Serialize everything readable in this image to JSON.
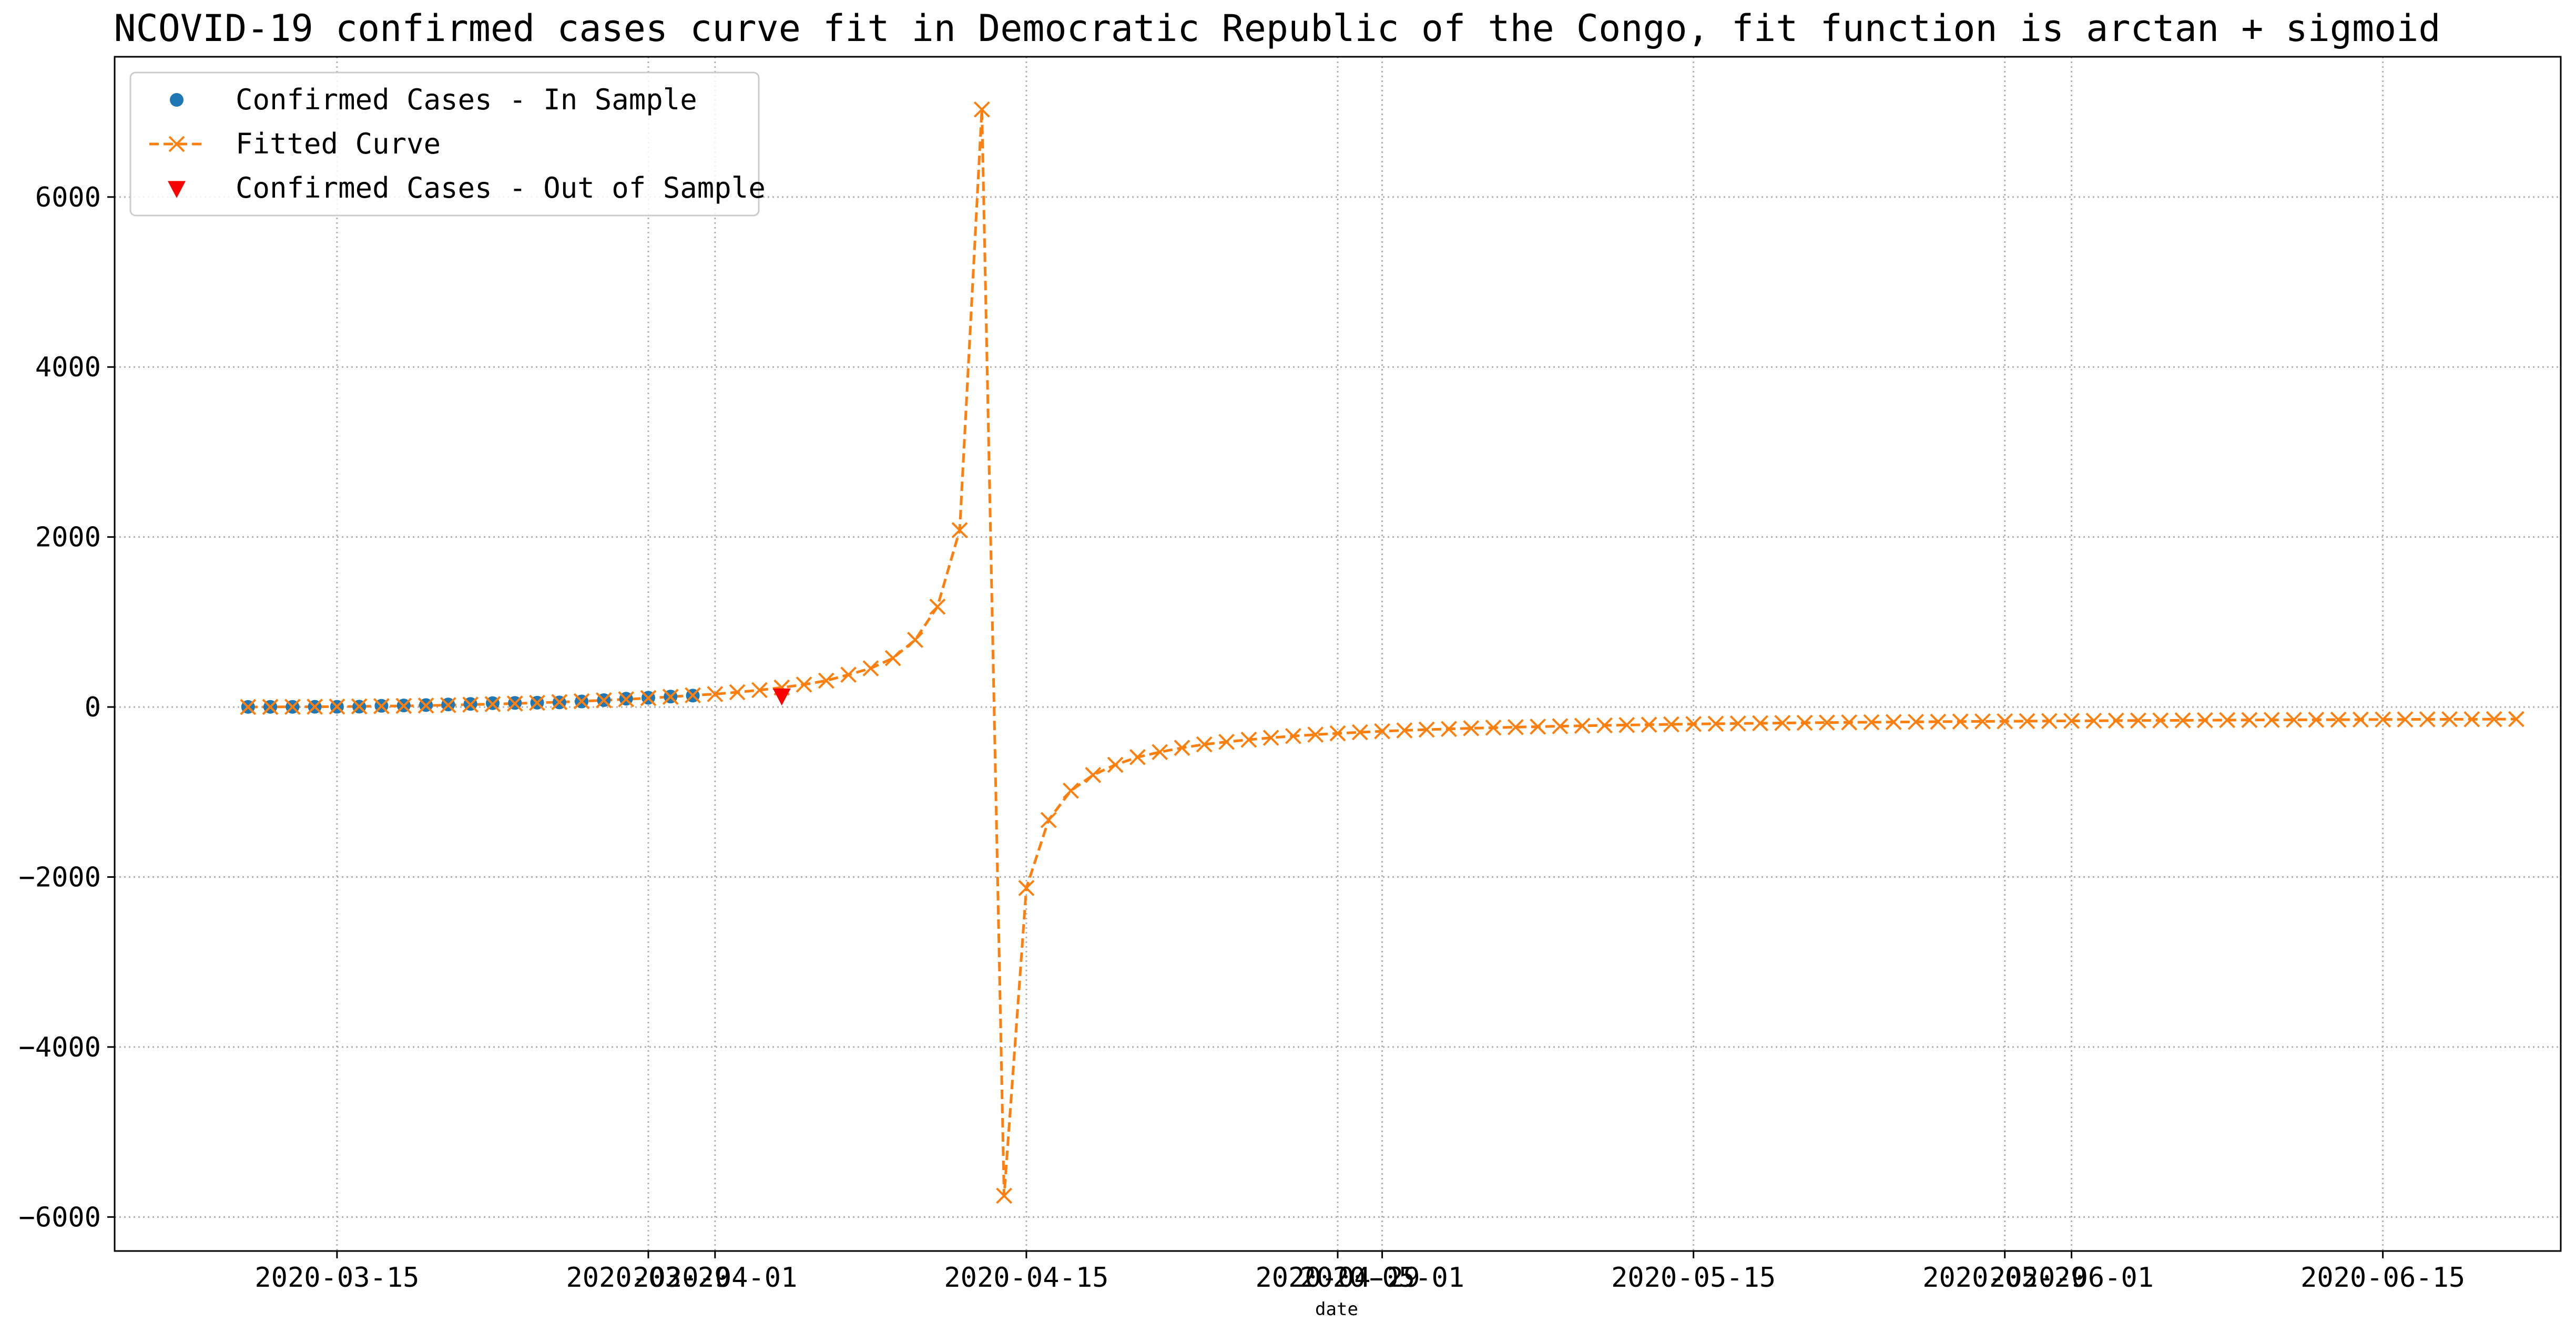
{
  "chart_data": {
    "type": "line",
    "title": "NCOVID-19 confirmed cases curve fit in Democratic Republic of the Congo, fit function is arctan + sigmoid",
    "xlabel": "date",
    "ylabel": "",
    "grid": true,
    "legend_position": "top-left",
    "x_range": [
      "2020-03-05",
      "2020-06-23"
    ],
    "ylim": [
      -6400,
      7650
    ],
    "x_ticks": [
      "2020-03-15",
      "2020-03-29",
      "2020-04-01",
      "2020-04-15",
      "2020-04-29",
      "2020-05-01",
      "2020-05-15",
      "2020-05-29",
      "2020-06-01",
      "2020-06-15"
    ],
    "y_ticks": [
      6000,
      4000,
      2000,
      0,
      -2000,
      -4000,
      -6000
    ],
    "colors": {
      "in_sample": "#1f77b4",
      "fitted": "#ff7f0e",
      "out_of_sample": "#ff0000",
      "grid": "#b0b0b0",
      "axes": "#000000"
    },
    "series": [
      {
        "name": "Confirmed Cases - In Sample",
        "marker": "circle",
        "start_date": "2020-03-11",
        "values": [
          1,
          2,
          2,
          3,
          3,
          4,
          14,
          18,
          23,
          30,
          36,
          45,
          48,
          51,
          54,
          65,
          81,
          98,
          109,
          123,
          134
        ]
      },
      {
        "name": "Fitted Curve",
        "marker": "x",
        "line": "dashed",
        "start_date": "2020-03-11",
        "values": [
          0,
          1,
          2,
          3,
          5,
          7,
          10,
          13,
          17,
          22,
          28,
          34,
          41,
          49,
          58,
          68,
          79,
          91,
          105,
          120,
          138,
          152,
          174,
          199,
          229,
          264,
          310,
          380,
          455,
          575,
          790,
          1180,
          2080,
          7030,
          -5750,
          -2130,
          -1330,
          -985,
          -800,
          -680,
          -590,
          -530,
          -480,
          -440,
          -410,
          -385,
          -362,
          -342,
          -325,
          -310,
          -297,
          -285,
          -275,
          -266,
          -258,
          -250,
          -243,
          -237,
          -231,
          -226,
          -221,
          -216,
          -212,
          -208,
          -204,
          -200,
          -197,
          -194,
          -191,
          -188,
          -186,
          -183,
          -181,
          -179,
          -177,
          -175,
          -173,
          -171,
          -169,
          -168,
          -166,
          -165,
          -163,
          -162,
          -160,
          -159,
          -158,
          -157,
          -155,
          -154,
          -153,
          -152,
          -151,
          -150,
          -149,
          -148,
          -147,
          -146,
          -145,
          -144,
          -144,
          -143,
          -142
        ]
      },
      {
        "name": "Confirmed Cases - Out of Sample",
        "marker": "triangle-down",
        "start_date": "2020-04-04",
        "values": [
          134
        ]
      }
    ]
  }
}
